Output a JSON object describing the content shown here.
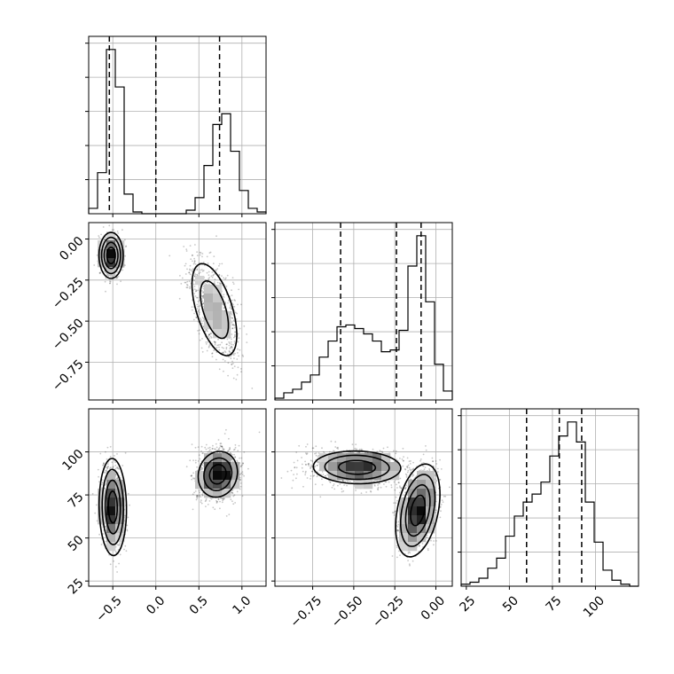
{
  "chart_data": {
    "type": "corner",
    "title": "",
    "parameters": [
      {
        "key": "p0",
        "label": "",
        "range": [
          -0.78,
          1.28
        ],
        "ticks": [
          -0.5,
          0.0,
          0.5,
          1.0
        ],
        "tick_labels": [
          "−0.5",
          "0.0",
          "0.5",
          "1.0"
        ]
      },
      {
        "key": "p1",
        "label": "",
        "range": [
          -0.98,
          0.1
        ],
        "ticks": [
          -0.75,
          -0.5,
          -0.25,
          0.0
        ],
        "tick_labels": [
          "−0.75",
          "−0.50",
          "−0.25",
          "0.00"
        ]
      },
      {
        "key": "p2",
        "label": "",
        "range": [
          22,
          125
        ],
        "ticks": [
          25,
          50,
          75,
          100
        ],
        "tick_labels": [
          "25",
          "50",
          "75",
          "100"
        ]
      }
    ],
    "histograms": [
      {
        "param": "p0",
        "bin_edges": [
          -0.78,
          -0.677,
          -0.574,
          -0.471,
          -0.368,
          -0.265,
          -0.162,
          -0.059,
          0.044,
          0.147,
          0.25,
          0.353,
          0.456,
          0.559,
          0.662,
          0.765,
          0.868,
          0.971,
          1.074,
          1.177,
          1.28
        ],
        "counts": [
          0.03,
          0.23,
          0.92,
          0.71,
          0.11,
          0.01,
          0,
          0,
          0,
          0,
          0,
          0.02,
          0.09,
          0.27,
          0.5,
          0.56,
          0.35,
          0.13,
          0.03,
          0.01
        ],
        "quantiles": [
          -0.54,
          0.0,
          0.74
        ]
      },
      {
        "param": "p1",
        "bin_edges": [
          -0.98,
          -0.926,
          -0.872,
          -0.818,
          -0.764,
          -0.71,
          -0.656,
          -0.602,
          -0.548,
          -0.494,
          -0.44,
          -0.386,
          -0.332,
          -0.278,
          -0.224,
          -0.17,
          -0.116,
          -0.062,
          -0.008,
          0.046,
          0.1
        ],
        "counts": [
          0.01,
          0.04,
          0.06,
          0.1,
          0.14,
          0.24,
          0.33,
          0.41,
          0.42,
          0.4,
          0.37,
          0.33,
          0.27,
          0.28,
          0.39,
          0.75,
          0.92,
          0.55,
          0.2,
          0.05
        ],
        "quantiles": [
          -0.58,
          -0.24,
          -0.09
        ]
      },
      {
        "param": "p2",
        "bin_edges": [
          22,
          27.15,
          32.3,
          37.45,
          42.6,
          47.75,
          52.9,
          58.05,
          63.2,
          68.35,
          73.5,
          78.65,
          83.8,
          88.95,
          94.1,
          99.25,
          104.4,
          109.55,
          114.7,
          119.85,
          125
        ],
        "counts": [
          0.01,
          0.02,
          0.04,
          0.09,
          0.14,
          0.25,
          0.35,
          0.42,
          0.46,
          0.52,
          0.65,
          0.75,
          0.82,
          0.72,
          0.42,
          0.22,
          0.08,
          0.03,
          0.01,
          0
        ],
        "quantiles": [
          60,
          79,
          92
        ]
      }
    ],
    "joint": [
      {
        "x": "p0",
        "y": "p1",
        "clusters": [
          {
            "center": [
              -0.52,
              -0.1
            ],
            "sd": [
              0.055,
              0.055
            ],
            "rho": 0.0,
            "weight": 0.45,
            "levels": [
              0.9,
              1.45,
              2.0,
              2.55
            ]
          },
          {
            "center": [
              0.68,
              -0.43
            ],
            "sd": [
              0.13,
              0.14
            ],
            "rho": -0.55,
            "weight": 0.55,
            "levels": [
              1.25,
              2.0
            ]
          }
        ]
      },
      {
        "x": "p0",
        "y": "p2",
        "clusters": [
          {
            "center": [
              -0.5,
              68
            ],
            "sd": [
              0.065,
              11.5
            ],
            "rho": -0.05,
            "weight": 0.45,
            "levels": [
              0.8,
              1.35,
              1.9,
              2.45
            ]
          },
          {
            "center": [
              0.72,
              87
            ],
            "sd": [
              0.12,
              7.0
            ],
            "rho": 0.1,
            "weight": 0.55,
            "levels": [
              0.8,
              1.35,
              1.9
            ]
          }
        ]
      },
      {
        "x": "p1",
        "y": "p2",
        "clusters": [
          {
            "center": [
              -0.48,
              91
            ],
            "sd": [
              0.14,
              5.0
            ],
            "rho": -0.05,
            "weight": 0.5,
            "levels": [
              0.8,
              1.4,
              1.9
            ]
          },
          {
            "center": [
              -0.11,
              66
            ],
            "sd": [
              0.055,
              11.0
            ],
            "rho": 0.35,
            "weight": 0.5,
            "levels": [
              0.8,
              1.35,
              1.9,
              2.45
            ]
          }
        ]
      }
    ],
    "grid": true,
    "legend": "none"
  }
}
